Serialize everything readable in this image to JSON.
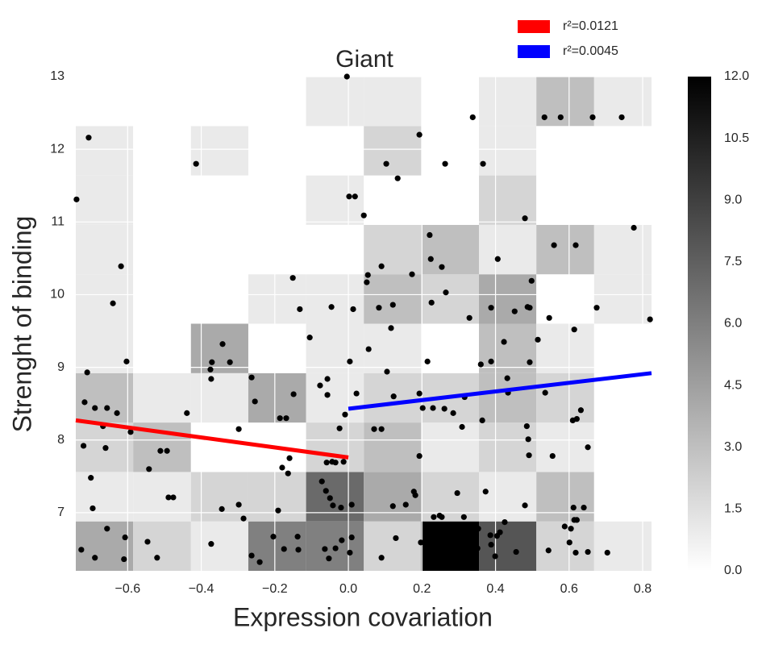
{
  "chart_data": {
    "type": "scatter",
    "title": "Giant",
    "x_label": "Expression covariation",
    "y_label": "Strenght of binding",
    "xlim": [
      -0.741,
      0.824
    ],
    "ylim": [
      6.2,
      13.0
    ],
    "xticks": [
      {
        "value": -0.6,
        "label": "−0.6"
      },
      {
        "value": -0.4,
        "label": "−0.4"
      },
      {
        "value": -0.2,
        "label": "−0.2"
      },
      {
        "value": 0,
        "label": "0.0"
      },
      0.2,
      0.4,
      0.6,
      0.8
    ],
    "yticks": [
      7,
      8,
      9,
      10,
      11,
      12,
      13
    ],
    "grid": true,
    "legend": "upper right",
    "heatmap": {
      "xbins": [
        -0.741,
        -0.585,
        -0.428,
        -0.272,
        -0.115,
        0.042,
        0.198,
        0.355,
        0.511,
        0.668,
        0.824
      ],
      "ybins": [
        6.2,
        6.88,
        7.56,
        8.24,
        8.92,
        9.6,
        10.28,
        10.96,
        11.64,
        12.32,
        13.0
      ],
      "counts": [
        [
          4,
          2,
          1,
          6,
          6,
          2,
          12,
          8,
          2,
          1
        ],
        [
          1,
          1,
          2,
          2,
          7,
          4,
          2,
          1,
          3,
          0
        ],
        [
          2,
          3,
          0,
          0,
          2,
          3,
          1,
          2,
          1,
          0
        ],
        [
          3,
          1,
          1,
          4,
          1,
          2,
          2,
          3,
          2,
          0
        ],
        [
          1,
          0,
          4,
          0,
          1,
          1,
          0,
          3,
          1,
          0
        ],
        [
          1,
          0,
          0,
          1,
          1,
          3,
          2,
          4,
          0,
          1
        ],
        [
          1,
          0,
          0,
          0,
          0,
          2,
          3,
          1,
          3,
          1
        ],
        [
          1,
          0,
          0,
          0,
          1,
          0,
          0,
          2,
          0,
          0
        ],
        [
          1,
          0,
          1,
          0,
          0,
          2,
          0,
          1,
          0,
          0
        ],
        [
          0,
          0,
          0,
          0,
          1,
          1,
          0,
          1,
          3,
          1
        ]
      ],
      "colors": [
        "#ffffff",
        "#000000"
      ]
    },
    "colorbar": {
      "lim": [
        0,
        12
      ],
      "ticks": [
        {
          "value": 0,
          "label": "0.0"
        },
        1.5,
        {
          "value": 3,
          "label": "3.0"
        },
        4.5,
        {
          "value": 6,
          "label": "6.0"
        },
        7.5,
        {
          "value": 9,
          "label": "9.0"
        },
        10.5,
        {
          "value": 12,
          "label": "12.0"
        }
      ]
    },
    "series": [
      {
        "color": "#000000",
        "x": [
          -0.004,
          0.338,
          0.533,
          0.577,
          0.664,
          0.743,
          -0.706,
          -0.414,
          0.103,
          0.263,
          0.366,
          0.193,
          -0.739,
          0.002,
          0.018,
          0.042,
          0.134,
          0.48,
          0.776,
          0.221,
          0.559,
          0.618,
          0.224,
          0.254,
          0.406,
          0.09,
          -0.618,
          0.053,
          0.05,
          0.173,
          -0.151,
          -0.64,
          0.498,
          0.265,
          0.226,
          -0.046,
          0.083,
          0.121,
          -0.132,
          0.013,
          0.388,
          0.493,
          0.452,
          0.487,
          0.329,
          0.546,
          0.675,
          0.82,
          -0.105,
          -0.342,
          0.116,
          0.423,
          0.614,
          -0.375,
          -0.371,
          -0.322,
          -0.603,
          0.004,
          0.055,
          0.215,
          0.36,
          0.388,
          0.493,
          0.515,
          -0.71,
          0.105,
          -0.373,
          -0.057,
          -0.077,
          0.022,
          0.432,
          -0.263,
          -0.254,
          -0.149,
          -0.717,
          -0.689,
          -0.656,
          -0.629,
          -0.439,
          -0.186,
          -0.169,
          -0.057,
          -0.009,
          0.123,
          0.193,
          0.202,
          0.316,
          0.261,
          0.23,
          0.285,
          0.309,
          0.364,
          0.434,
          0.535,
          0.61,
          0.632,
          0.485,
          0.489,
          -0.72,
          -0.667,
          -0.66,
          -0.592,
          -0.298,
          -0.024,
          0.07,
          0.09,
          0.621,
          -0.542,
          -0.511,
          -0.493,
          -0.16,
          -0.164,
          -0.18,
          -0.059,
          -0.044,
          -0.035,
          -0.013,
          0.193,
          0.491,
          0.651,
          0.555,
          -0.7,
          -0.489,
          -0.476,
          -0.695,
          -0.344,
          -0.191,
          -0.072,
          -0.061,
          -0.05,
          -0.042,
          -0.02,
          0.009,
          0.121,
          0.156,
          0.178,
          0.182,
          0.296,
          0.373,
          0.248,
          0.254,
          0.612,
          0.64,
          0.621,
          0.614,
          0.48,
          0.588,
          0.425,
          0.412,
          0.349,
          -0.285,
          -0.298,
          -0.726,
          -0.656,
          -0.689,
          -0.607,
          -0.61,
          -0.546,
          -0.52,
          -0.373,
          -0.263,
          -0.241,
          -0.204,
          -0.175,
          -0.136,
          -0.138,
          -0.035,
          -0.018,
          0.009,
          -0.053,
          -0.064,
          0.004,
          0.09,
          0.129,
          0.197,
          0.232,
          0.294,
          0.314,
          0.351,
          0.388,
          0.399,
          0.386,
          0.404,
          0.456,
          0.353,
          0.544,
          0.618,
          0.651,
          0.704,
          0.601,
          0.605
        ],
        "values": [
          13.0,
          12.44,
          12.44,
          12.44,
          12.44,
          12.44,
          12.16,
          11.8,
          11.8,
          11.8,
          11.8,
          12.2,
          11.31,
          11.35,
          11.35,
          11.09,
          11.6,
          11.05,
          10.92,
          10.82,
          10.68,
          10.68,
          10.49,
          10.38,
          10.49,
          10.39,
          10.39,
          10.27,
          10.17,
          10.28,
          10.23,
          9.88,
          10.19,
          10.03,
          9.89,
          9.83,
          9.82,
          9.86,
          9.8,
          9.8,
          9.82,
          9.82,
          9.77,
          9.83,
          9.68,
          9.68,
          9.82,
          9.66,
          9.41,
          9.32,
          9.54,
          9.35,
          9.52,
          8.97,
          9.07,
          9.07,
          9.08,
          9.08,
          9.25,
          9.08,
          9.04,
          9.08,
          9.07,
          9.38,
          8.93,
          8.94,
          8.84,
          8.84,
          8.75,
          8.64,
          8.85,
          8.86,
          8.53,
          8.63,
          8.52,
          8.44,
          8.44,
          8.37,
          8.37,
          8.3,
          8.3,
          8.62,
          8.35,
          8.6,
          8.64,
          8.44,
          8.59,
          8.43,
          8.44,
          8.37,
          8.18,
          8.27,
          8.65,
          8.65,
          8.27,
          8.41,
          8.19,
          8.01,
          7.92,
          8.19,
          7.89,
          8.11,
          8.15,
          8.16,
          8.15,
          8.15,
          8.29,
          7.6,
          7.85,
          7.85,
          7.75,
          7.54,
          7.62,
          7.69,
          7.7,
          7.69,
          7.7,
          7.78,
          7.79,
          7.9,
          7.78,
          7.48,
          7.21,
          7.21,
          7.06,
          7.05,
          7.03,
          7.43,
          7.3,
          7.2,
          7.1,
          7.07,
          7.11,
          7.09,
          7.11,
          7.29,
          7.24,
          7.27,
          7.29,
          6.96,
          6.94,
          7.07,
          7.07,
          6.9,
          6.9,
          7.1,
          6.81,
          6.87,
          6.73,
          6.78,
          6.92,
          7.11,
          6.49,
          6.78,
          6.38,
          6.66,
          6.36,
          6.6,
          6.38,
          6.57,
          6.41,
          6.32,
          6.67,
          6.5,
          6.49,
          6.67,
          6.51,
          6.62,
          6.66,
          6.37,
          6.5,
          6.45,
          6.38,
          6.65,
          6.59,
          6.94,
          6.62,
          6.94,
          6.51,
          6.56,
          6.4,
          6.69,
          6.68,
          6.46,
          6.78,
          6.48,
          6.45,
          6.46,
          6.45,
          6.59,
          6.78
        ]
      }
    ],
    "fits": [
      {
        "name": "r²=0.0121",
        "color": "#ff0000",
        "x": [
          -0.741,
          0.0
        ],
        "values": [
          8.27,
          7.76
        ]
      },
      {
        "name": "r²=0.0045",
        "color": "#0000ff",
        "x": [
          0.0,
          0.824
        ],
        "values": [
          8.43,
          8.92
        ]
      }
    ]
  }
}
